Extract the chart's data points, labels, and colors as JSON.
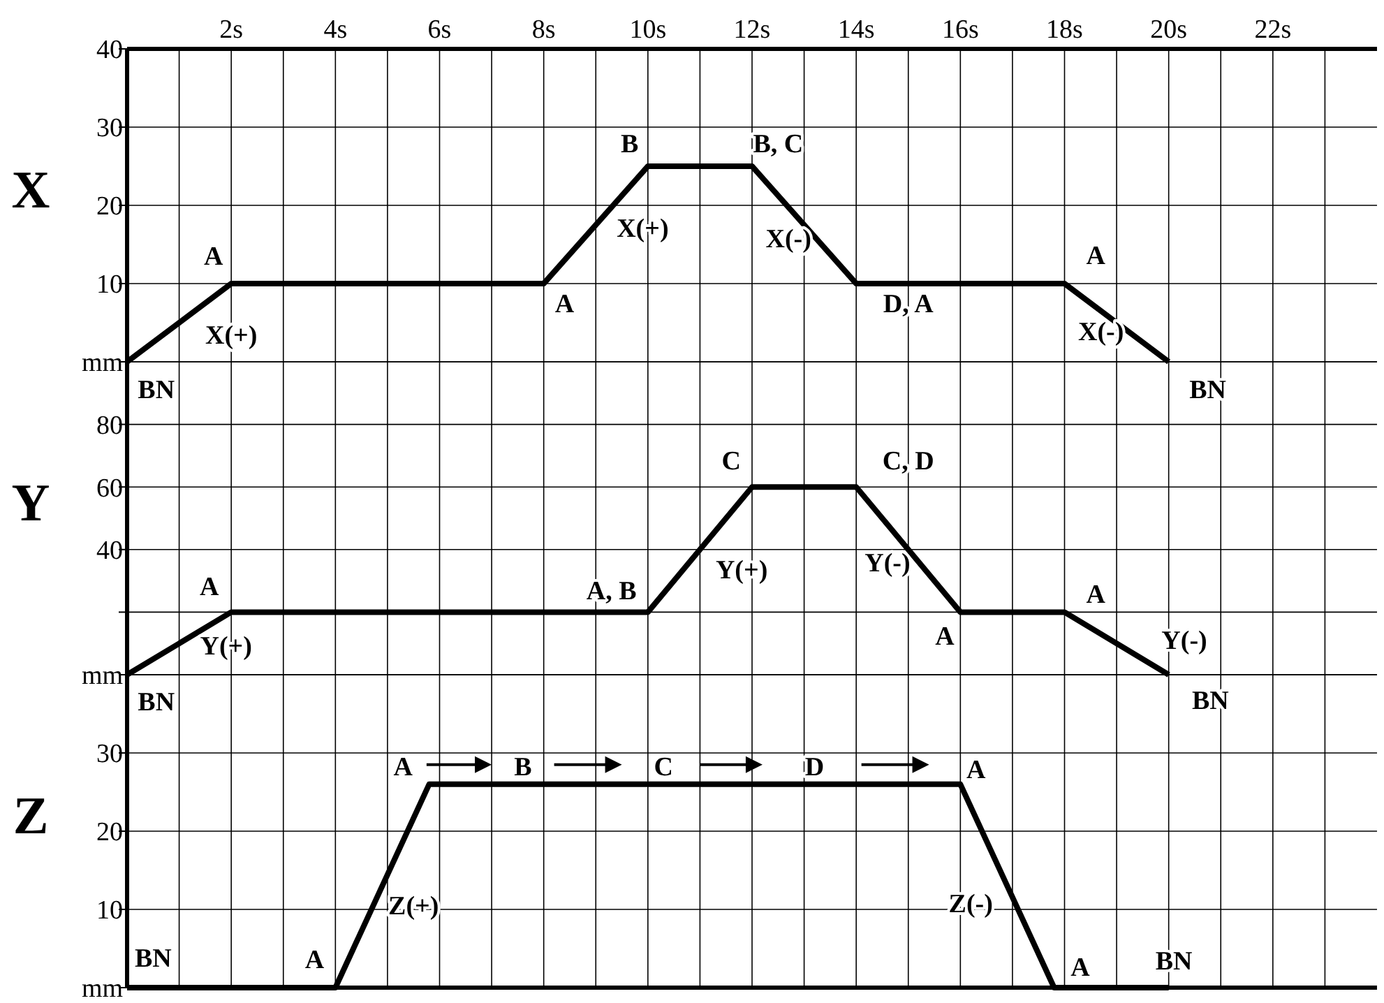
{
  "chart_data": [
    {
      "type": "line",
      "ylabel": "X",
      "xlim": [
        0,
        24
      ],
      "xticks": [
        {
          "value": 1,
          "label": null
        },
        {
          "value": 2,
          "label": "2s"
        },
        {
          "value": 3,
          "label": null
        },
        {
          "value": 4,
          "label": "4s"
        },
        {
          "value": 5,
          "label": null
        },
        {
          "value": 6,
          "label": "6s"
        },
        {
          "value": 7,
          "label": null
        },
        {
          "value": 8,
          "label": "8s"
        },
        {
          "value": 9,
          "label": null
        },
        {
          "value": 10,
          "label": "10s"
        },
        {
          "value": 11,
          "label": null
        },
        {
          "value": 12,
          "label": "12s"
        },
        {
          "value": 13,
          "label": null
        },
        {
          "value": 14,
          "label": "14s"
        },
        {
          "value": 15,
          "label": null
        },
        {
          "value": 16,
          "label": "16s"
        },
        {
          "value": 17,
          "label": null
        },
        {
          "value": 18,
          "label": "18s"
        },
        {
          "value": 19,
          "label": null
        },
        {
          "value": 20,
          "label": "20s"
        },
        {
          "value": 21,
          "label": null
        },
        {
          "value": 22,
          "label": "22s"
        },
        {
          "value": 23,
          "label": null
        }
      ],
      "ylim": [
        0,
        40
      ],
      "yticks": [
        {
          "value": 0,
          "label": "mm"
        },
        10,
        20,
        30,
        40
      ],
      "grid": true,
      "series": [
        {
          "color": "#000000",
          "x": [
            0,
            2,
            8,
            10,
            12,
            14,
            18,
            20
          ],
          "values": [
            0,
            10,
            10,
            25,
            25,
            10,
            10,
            0
          ]
        }
      ],
      "annotations": [
        "A",
        "X(+)",
        "A",
        "B",
        "X(+)",
        "B, C",
        "X(-)",
        "D, A",
        "A",
        "X(-)"
      ]
    },
    {
      "type": "line",
      "ylabel": "Y",
      "tick_labels": "y",
      "xlim": [
        0,
        24
      ],
      "xticks": [
        {
          "value": 1,
          "label": null
        },
        {
          "value": 2,
          "label": null
        },
        {
          "value": 3,
          "label": null
        },
        {
          "value": 4,
          "label": null
        },
        {
          "value": 5,
          "label": null
        },
        {
          "value": 6,
          "label": null
        },
        {
          "value": 7,
          "label": null
        },
        {
          "value": 8,
          "label": null
        },
        {
          "value": 9,
          "label": null
        },
        {
          "value": 10,
          "label": null
        },
        {
          "value": 11,
          "label": null
        },
        {
          "value": 12,
          "label": null
        },
        {
          "value": 13,
          "label": null
        },
        {
          "value": 14,
          "label": null
        },
        {
          "value": 15,
          "label": null
        },
        {
          "value": 16,
          "label": null
        },
        {
          "value": 17,
          "label": null
        },
        {
          "value": 18,
          "label": null
        },
        {
          "value": 19,
          "label": null
        },
        {
          "value": 20,
          "label": null
        },
        {
          "value": 21,
          "label": null
        },
        {
          "value": 22,
          "label": null
        },
        {
          "value": 23,
          "label": null
        }
      ],
      "ylim": [
        0,
        100
      ],
      "yticks": [
        {
          "value": 0,
          "label": "mm"
        },
        {
          "value": 20,
          "label": null
        },
        40,
        60,
        80,
        {
          "value": 100,
          "label": null
        }
      ],
      "grid": true,
      "series": [
        {
          "color": "#000000",
          "x": [
            0,
            2,
            10,
            12,
            14,
            16,
            18,
            20
          ],
          "values": [
            0,
            20,
            20,
            60,
            60,
            20,
            20,
            0
          ]
        }
      ],
      "annotations": [
        "BN",
        "BN",
        "A",
        "Y(+)",
        "A, B",
        "C",
        "Y(+)",
        "C, D",
        "Y(-)",
        "A",
        "A",
        "Y(-)"
      ]
    },
    {
      "type": "line",
      "ylabel": "Z",
      "tick_labels": "y",
      "xlim": [
        0,
        24
      ],
      "xticks": [
        {
          "value": 1,
          "label": null
        },
        {
          "value": 2,
          "label": null
        },
        {
          "value": 3,
          "label": null
        },
        {
          "value": 4,
          "label": null
        },
        {
          "value": 5,
          "label": null
        },
        {
          "value": 6,
          "label": null
        },
        {
          "value": 7,
          "label": null
        },
        {
          "value": 8,
          "label": null
        },
        {
          "value": 9,
          "label": null
        },
        {
          "value": 10,
          "label": null
        },
        {
          "value": 11,
          "label": null
        },
        {
          "value": 12,
          "label": null
        },
        {
          "value": 13,
          "label": null
        },
        {
          "value": 14,
          "label": null
        },
        {
          "value": 15,
          "label": null
        },
        {
          "value": 16,
          "label": null
        },
        {
          "value": 17,
          "label": null
        },
        {
          "value": 18,
          "label": null
        },
        {
          "value": 19,
          "label": null
        },
        {
          "value": 20,
          "label": null
        },
        {
          "value": 21,
          "label": null
        },
        {
          "value": 22,
          "label": null
        },
        {
          "value": 23,
          "label": null
        }
      ],
      "ylim": [
        0,
        40
      ],
      "yticks": [
        {
          "value": 0,
          "label": "mm"
        },
        10,
        20,
        30,
        {
          "value": 40,
          "label": null
        }
      ],
      "grid": true,
      "series": [
        {
          "color": "#000000",
          "x": [
            0,
            4,
            5.8,
            16,
            17.8,
            20
          ],
          "values": [
            0,
            0,
            26,
            26,
            0,
            0
          ]
        }
      ],
      "annotations": [
        "BN",
        "BN",
        "A",
        "B",
        "C",
        "D",
        "A",
        "Z(+)",
        "Z(-)",
        "BN",
        "A",
        "A",
        "BN"
      ]
    }
  ]
}
